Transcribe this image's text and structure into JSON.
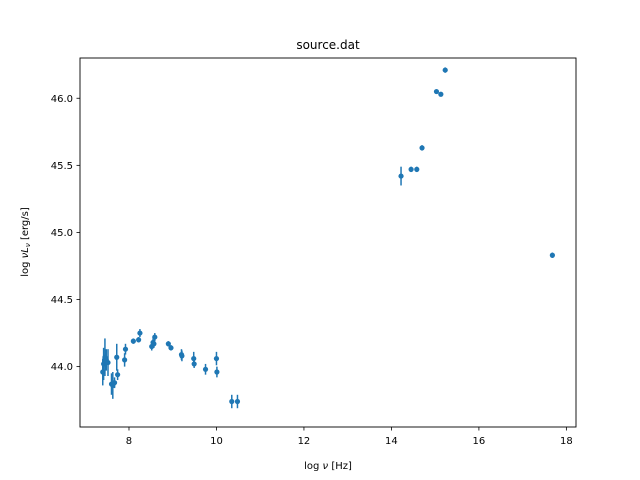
{
  "chart_data": {
    "type": "scatter",
    "title": "source.dat",
    "xlabel": "log ν [Hz]",
    "ylabel": "log νLν [erg/s]",
    "xlim": [
      6.88,
      18.22
    ],
    "ylim": [
      43.55,
      46.3
    ],
    "xticks": [
      8,
      10,
      12,
      14,
      16,
      18
    ],
    "yticks": [
      44.0,
      44.5,
      45.0,
      45.5,
      46.0
    ],
    "ytick_labels": [
      "44.0",
      "44.5",
      "45.0",
      "45.5",
      "46.0"
    ],
    "grid": false,
    "legend": null,
    "color": "#1f77b4",
    "series": [
      {
        "name": "source.dat",
        "x": [
          7.4,
          7.42,
          7.45,
          7.48,
          7.52,
          7.6,
          7.63,
          7.67,
          7.72,
          7.74,
          7.9,
          7.92,
          8.1,
          8.22,
          8.25,
          8.52,
          8.55,
          8.57,
          8.59,
          8.9,
          8.96,
          9.2,
          9.21,
          9.48,
          9.49,
          9.75,
          10.0,
          10.01,
          10.35,
          10.48,
          14.22,
          14.45,
          14.58,
          14.7,
          15.03,
          15.13,
          15.23,
          17.68
        ],
        "y": [
          43.96,
          44.02,
          44.07,
          44.05,
          44.03,
          43.87,
          43.86,
          43.88,
          44.07,
          43.94,
          44.05,
          44.13,
          44.19,
          44.2,
          44.25,
          44.15,
          44.18,
          44.17,
          44.22,
          44.17,
          44.14,
          44.09,
          44.08,
          44.06,
          44.02,
          43.98,
          44.06,
          43.96,
          43.74,
          43.74,
          45.42,
          45.47,
          45.47,
          45.63,
          46.05,
          46.03,
          46.21,
          44.83
        ],
        "yerr": [
          0.1,
          0.12,
          0.14,
          0.08,
          0.1,
          0.08,
          0.1,
          0.04,
          0.1,
          0.04,
          0.05,
          0.04,
          0.02,
          0.02,
          0.03,
          0.03,
          0.03,
          0.03,
          0.03,
          0.02,
          0.02,
          0.04,
          0.04,
          0.05,
          0.03,
          0.04,
          0.05,
          0.04,
          0.05,
          0.05,
          0.07,
          0.02,
          0.02,
          0.02,
          0.01,
          0.01,
          0.02,
          0.02
        ]
      }
    ]
  }
}
